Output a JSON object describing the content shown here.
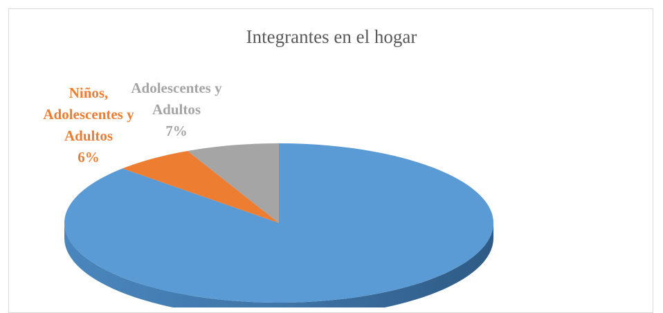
{
  "chart_data": {
    "type": "pie",
    "title": "Integrantes en el hogar",
    "categories": [
      null,
      "Niños, Adolescentes y Adultos",
      "Adolescentes y Adultos"
    ],
    "values": [
      87,
      6,
      7
    ],
    "value_labels": [
      null,
      "6%",
      "7%"
    ],
    "colors": [
      "#5b9bd5",
      "#ed7d31",
      "#a5a5a5"
    ],
    "three_d": true
  }
}
